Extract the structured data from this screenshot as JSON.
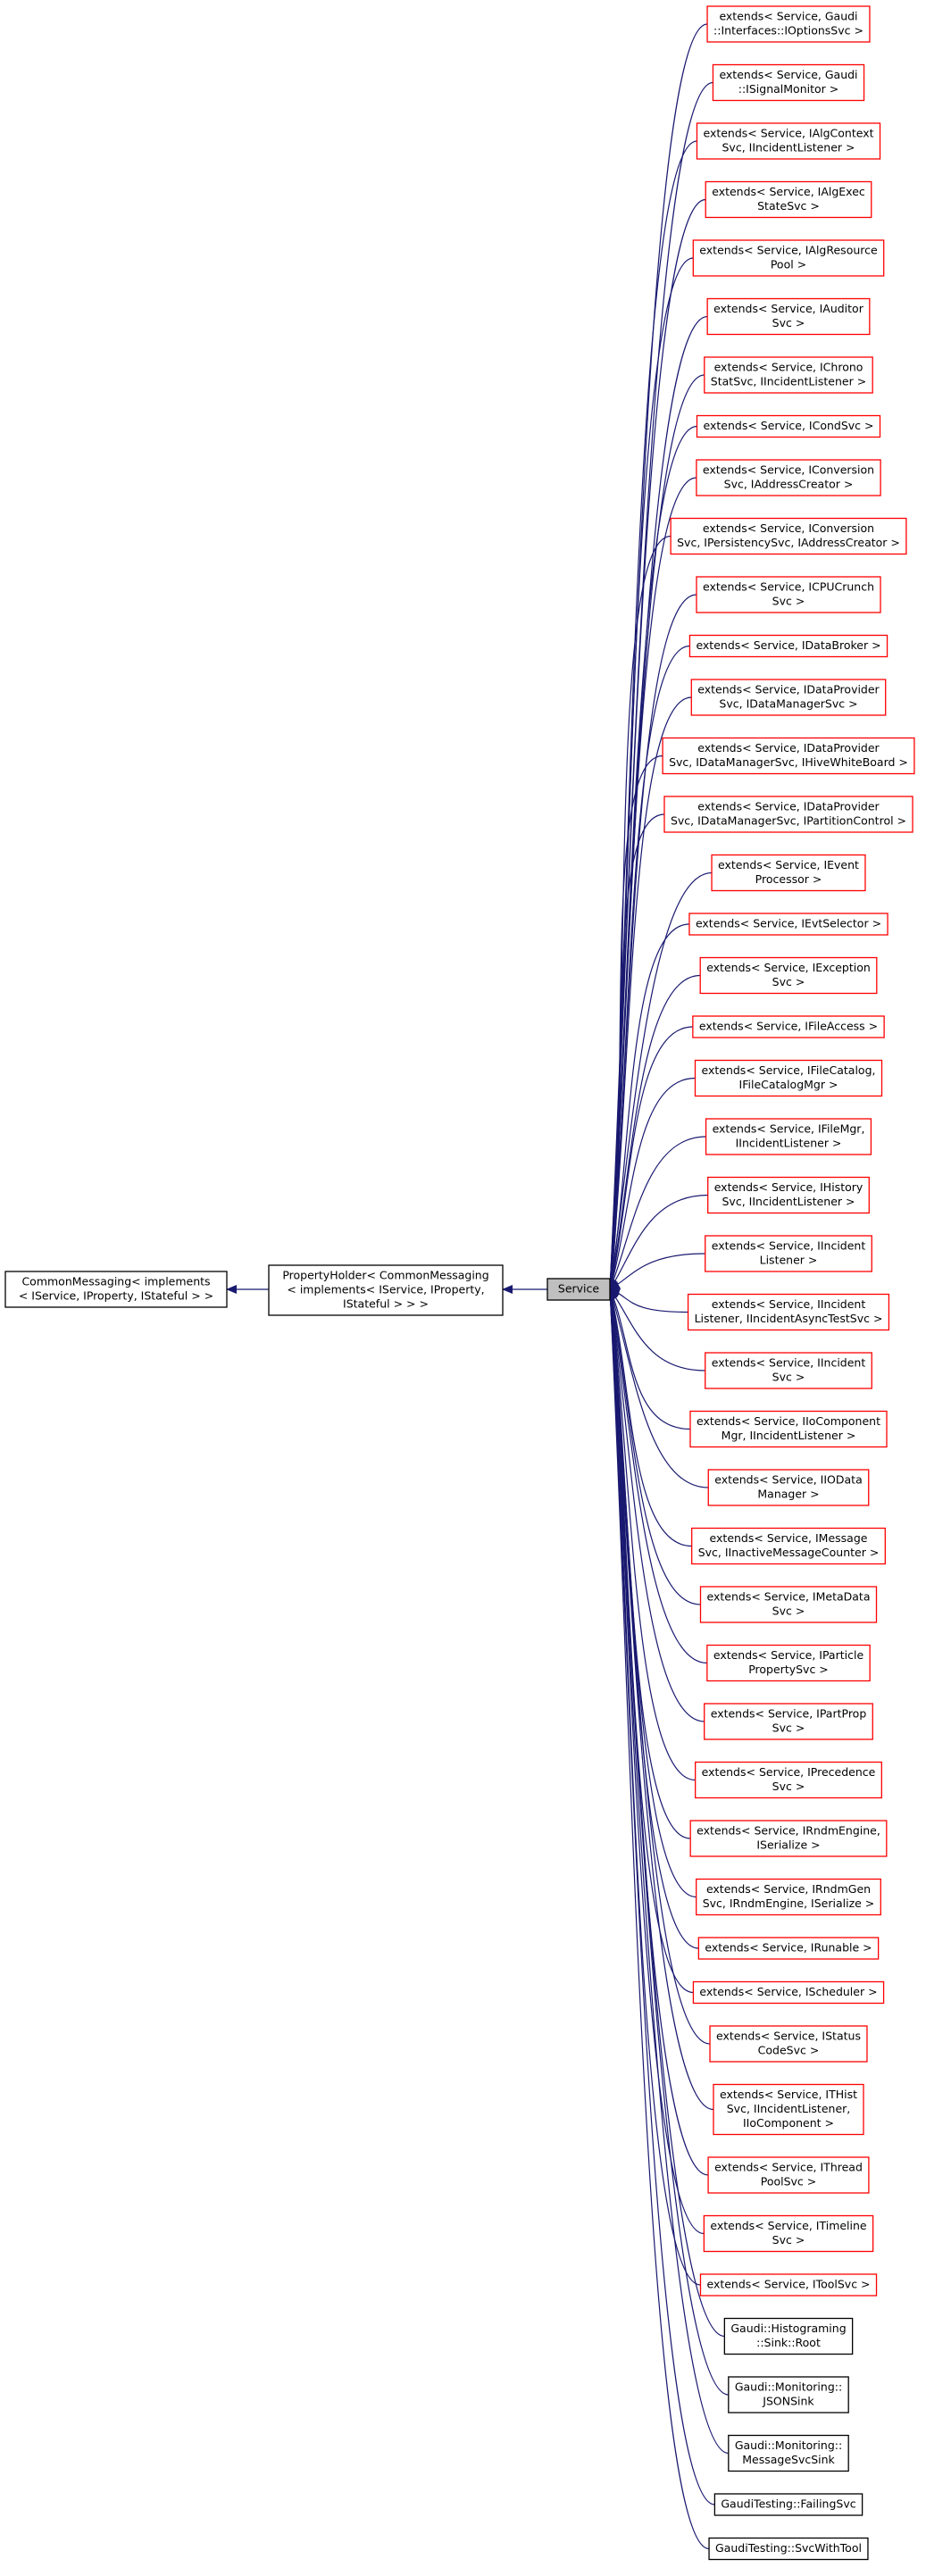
{
  "base_chain": [
    {
      "lines": [
        "CommonMessaging< implements",
        "< IService, IProperty, IStateful > >"
      ],
      "border": "#000000"
    },
    {
      "lines": [
        "PropertyHolder< CommonMessaging",
        "< implements< IService, IProperty,",
        "IStateful > > >"
      ],
      "border": "#000000"
    }
  ],
  "service": {
    "lines": [
      "Service"
    ],
    "border": "#000000",
    "fill": "#bfbfbf"
  },
  "edge_color": "#191970",
  "derived": [
    {
      "lines": [
        "extends< Service, Gaudi",
        "::Interfaces::IOptionsSvc >"
      ],
      "border": "#ff0000"
    },
    {
      "lines": [
        "extends< Service, Gaudi",
        "::ISignalMonitor >"
      ],
      "border": "#ff0000"
    },
    {
      "lines": [
        "extends< Service, IAlgContext",
        "Svc, IIncidentListener >"
      ],
      "border": "#ff0000"
    },
    {
      "lines": [
        "extends< Service, IAlgExec",
        "StateSvc >"
      ],
      "border": "#ff0000"
    },
    {
      "lines": [
        "extends< Service, IAlgResource",
        "Pool >"
      ],
      "border": "#ff0000"
    },
    {
      "lines": [
        "extends< Service, IAuditor",
        "Svc >"
      ],
      "border": "#ff0000"
    },
    {
      "lines": [
        "extends< Service, IChrono",
        "StatSvc, IIncidentListener >"
      ],
      "border": "#ff0000"
    },
    {
      "lines": [
        "extends< Service, ICondSvc >"
      ],
      "border": "#ff0000"
    },
    {
      "lines": [
        "extends< Service, IConversion",
        "Svc, IAddressCreator >"
      ],
      "border": "#ff0000"
    },
    {
      "lines": [
        "extends< Service, IConversion",
        "Svc, IPersistencySvc, IAddressCreator >"
      ],
      "border": "#ff0000"
    },
    {
      "lines": [
        "extends< Service, ICPUCrunch",
        "Svc >"
      ],
      "border": "#ff0000"
    },
    {
      "lines": [
        "extends< Service, IDataBroker >"
      ],
      "border": "#ff0000"
    },
    {
      "lines": [
        "extends< Service, IDataProvider",
        "Svc, IDataManagerSvc >"
      ],
      "border": "#ff0000"
    },
    {
      "lines": [
        "extends< Service, IDataProvider",
        "Svc, IDataManagerSvc, IHiveWhiteBoard >"
      ],
      "border": "#ff0000"
    },
    {
      "lines": [
        "extends< Service, IDataProvider",
        "Svc, IDataManagerSvc, IPartitionControl >"
      ],
      "border": "#ff0000"
    },
    {
      "lines": [
        "extends< Service, IEvent",
        "Processor >"
      ],
      "border": "#ff0000"
    },
    {
      "lines": [
        "extends< Service, IEvtSelector >"
      ],
      "border": "#ff0000"
    },
    {
      "lines": [
        "extends< Service, IException",
        "Svc >"
      ],
      "border": "#ff0000"
    },
    {
      "lines": [
        "extends< Service, IFileAccess >"
      ],
      "border": "#ff0000"
    },
    {
      "lines": [
        "extends< Service, IFileCatalog,",
        "IFileCatalogMgr >"
      ],
      "border": "#ff0000"
    },
    {
      "lines": [
        "extends< Service, IFileMgr,",
        "IIncidentListener >"
      ],
      "border": "#ff0000"
    },
    {
      "lines": [
        "extends< Service, IHistory",
        "Svc, IIncidentListener >"
      ],
      "border": "#ff0000"
    },
    {
      "lines": [
        "extends< Service, IIncident",
        "Listener >"
      ],
      "border": "#ff0000"
    },
    {
      "lines": [
        "extends< Service, IIncident",
        "Listener, IIncidentAsyncTestSvc >"
      ],
      "border": "#ff0000"
    },
    {
      "lines": [
        "extends< Service, IIncident",
        "Svc >"
      ],
      "border": "#ff0000"
    },
    {
      "lines": [
        "extends< Service, IIoComponent",
        "Mgr, IIncidentListener >"
      ],
      "border": "#ff0000"
    },
    {
      "lines": [
        "extends< Service, IIOData",
        "Manager >"
      ],
      "border": "#ff0000"
    },
    {
      "lines": [
        "extends< Service, IMessage",
        "Svc, IInactiveMessageCounter >"
      ],
      "border": "#ff0000"
    },
    {
      "lines": [
        "extends< Service, IMetaData",
        "Svc >"
      ],
      "border": "#ff0000"
    },
    {
      "lines": [
        "extends< Service, IParticle",
        "PropertySvc >"
      ],
      "border": "#ff0000"
    },
    {
      "lines": [
        "extends< Service, IPartProp",
        "Svc >"
      ],
      "border": "#ff0000"
    },
    {
      "lines": [
        "extends< Service, IPrecedence",
        "Svc >"
      ],
      "border": "#ff0000"
    },
    {
      "lines": [
        "extends< Service, IRndmEngine,",
        "ISerialize >"
      ],
      "border": "#ff0000"
    },
    {
      "lines": [
        "extends< Service, IRndmGen",
        "Svc, IRndmEngine, ISerialize >"
      ],
      "border": "#ff0000"
    },
    {
      "lines": [
        "extends< Service, IRunable >"
      ],
      "border": "#ff0000"
    },
    {
      "lines": [
        "extends< Service, IScheduler >"
      ],
      "border": "#ff0000"
    },
    {
      "lines": [
        "extends< Service, IStatus",
        "CodeSvc >"
      ],
      "border": "#ff0000"
    },
    {
      "lines": [
        "extends< Service, ITHist",
        "Svc, IIncidentListener,",
        "IIoComponent >"
      ],
      "border": "#ff0000"
    },
    {
      "lines": [
        "extends< Service, IThread",
        "PoolSvc >"
      ],
      "border": "#ff0000"
    },
    {
      "lines": [
        "extends< Service, ITimeline",
        "Svc >"
      ],
      "border": "#ff0000"
    },
    {
      "lines": [
        "extends< Service, IToolSvc >"
      ],
      "border": "#ff0000"
    },
    {
      "lines": [
        "Gaudi::Histograming",
        "::Sink::Root"
      ],
      "border": "#000000"
    },
    {
      "lines": [
        "Gaudi::Monitoring::",
        "JSONSink"
      ],
      "border": "#000000"
    },
    {
      "lines": [
        "Gaudi::Monitoring::",
        "MessageSvcSink"
      ],
      "border": "#000000"
    },
    {
      "lines": [
        "GaudiTesting::FailingSvc"
      ],
      "border": "#000000"
    },
    {
      "lines": [
        "GaudiTesting::SvcWithTool"
      ],
      "border": "#000000"
    }
  ]
}
